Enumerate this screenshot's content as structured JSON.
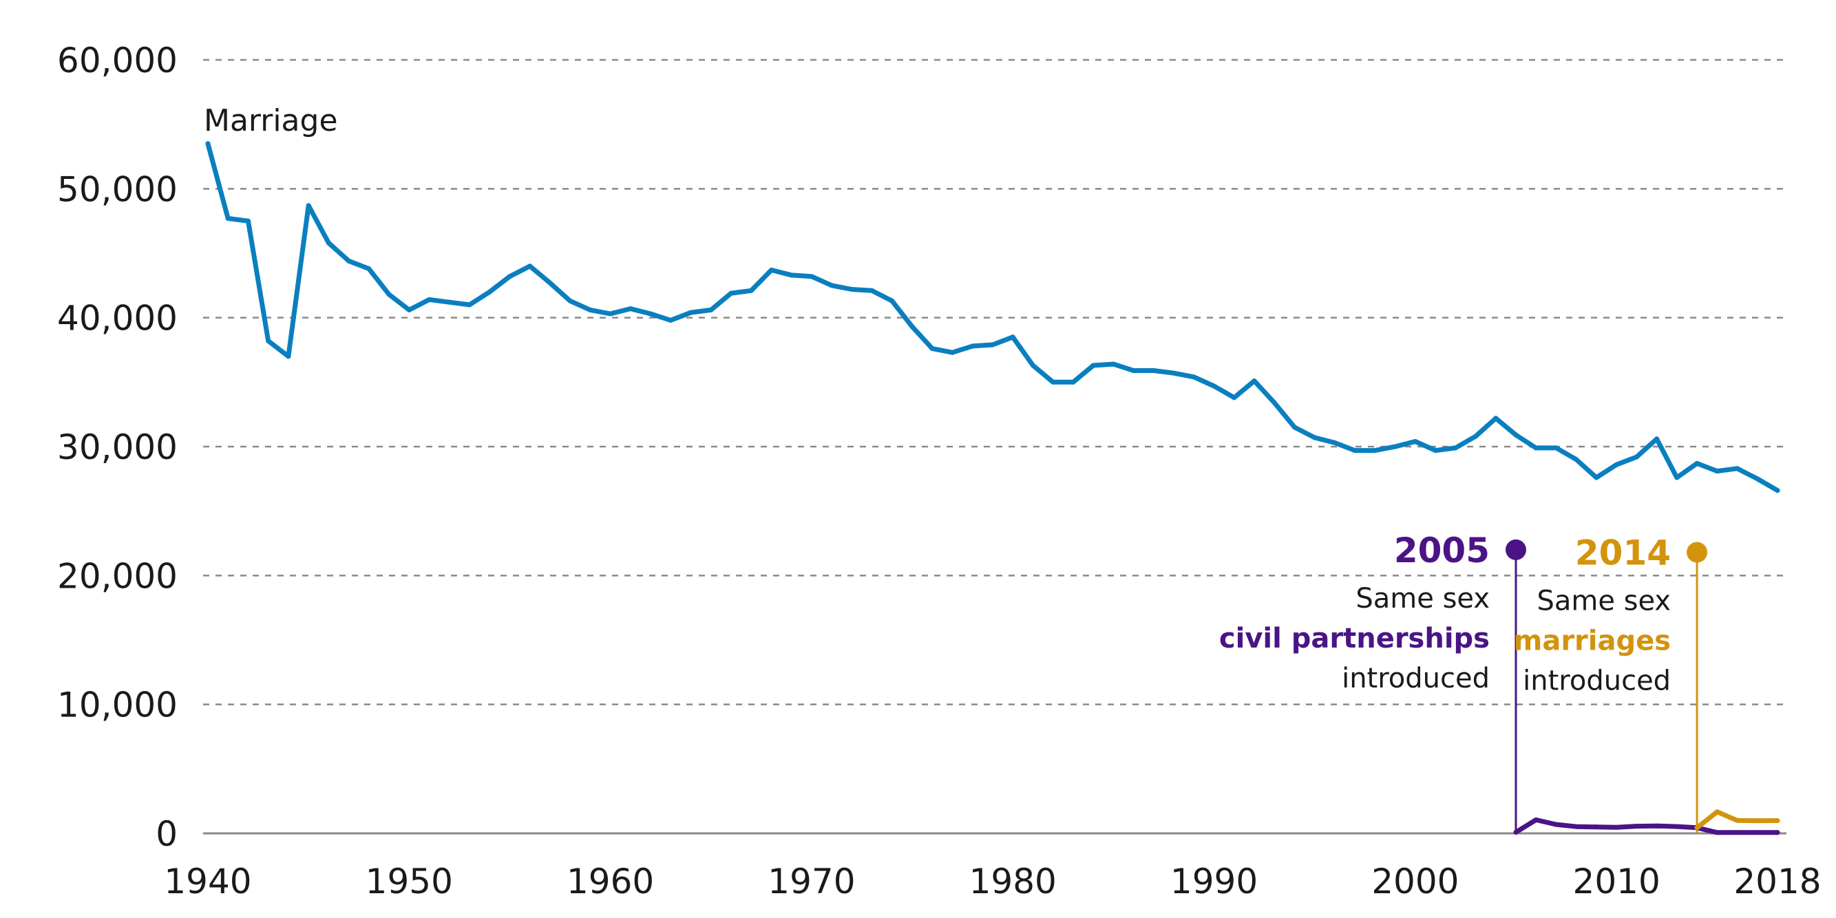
{
  "chart_data": {
    "type": "line",
    "x_ticks": [
      1940,
      1950,
      1960,
      1970,
      1980,
      1990,
      2000,
      2010,
      2018
    ],
    "y_ticks": [
      "0",
      "10,000",
      "20,000",
      "30,000",
      "40,000",
      "50,000",
      "60,000"
    ],
    "y_tick_values": [
      0,
      10000,
      20000,
      30000,
      40000,
      50000,
      60000
    ],
    "xlim": [
      1940,
      2018
    ],
    "ylim": [
      0,
      60000
    ],
    "grid": "horizontal dashed",
    "series": [
      {
        "name": "Marriage",
        "color": "#0a7fbf",
        "x": [
          1940,
          1941,
          1942,
          1943,
          1944,
          1945,
          1946,
          1947,
          1948,
          1949,
          1950,
          1951,
          1952,
          1953,
          1954,
          1955,
          1956,
          1957,
          1958,
          1959,
          1960,
          1961,
          1962,
          1963,
          1964,
          1965,
          1966,
          1967,
          1968,
          1969,
          1970,
          1971,
          1972,
          1973,
          1974,
          1975,
          1976,
          1977,
          1978,
          1979,
          1980,
          1981,
          1982,
          1983,
          1984,
          1985,
          1986,
          1987,
          1988,
          1989,
          1990,
          1991,
          1992,
          1993,
          1994,
          1995,
          1996,
          1997,
          1998,
          1999,
          2000,
          2001,
          2002,
          2003,
          2004,
          2005,
          2006,
          2007,
          2008,
          2009,
          2010,
          2011,
          2012,
          2013,
          2014,
          2015,
          2016,
          2017,
          2018
        ],
        "values": [
          53500,
          47700,
          47500,
          38200,
          37000,
          48700,
          45800,
          44400,
          43800,
          41800,
          40600,
          41400,
          41200,
          41000,
          42000,
          43200,
          44000,
          42700,
          41300,
          40600,
          40300,
          40700,
          40300,
          39800,
          40400,
          40600,
          41900,
          42100,
          43700,
          43300,
          43200,
          42500,
          42200,
          42100,
          41300,
          39300,
          37600,
          37300,
          37800,
          37900,
          38500,
          36300,
          35000,
          35000,
          36300,
          36400,
          35900,
          35900,
          35700,
          35400,
          34700,
          33800,
          35100,
          33400,
          31500,
          30700,
          30300,
          29700,
          29700,
          30000,
          30400,
          29700,
          29900,
          30800,
          32200,
          30900,
          29900,
          29900,
          29000,
          27600,
          28600,
          29200,
          30600,
          27600,
          28700,
          28100,
          28300,
          27500,
          26600
        ]
      },
      {
        "name": "",
        "color": "#4a1486",
        "x": [
          2005,
          2006,
          2007,
          2008,
          2009,
          2010,
          2011,
          2012,
          2013,
          2014,
          2015,
          2016,
          2017,
          2018
        ],
        "values": [
          84,
          1047,
          688,
          525,
          498,
          465,
          554,
          574,
          530,
          436,
          64,
          70,
          67,
          67
        ]
      },
      {
        "name": "",
        "color": "#d4930d",
        "x": [
          2014,
          2015,
          2016,
          2017,
          2018
        ],
        "values": [
          435,
          1671,
          998,
          982,
          986
        ]
      }
    ],
    "annotations": [
      {
        "year": "2005",
        "line1": "Same sex",
        "highlight": "civil partnerships",
        "line3": "introduced",
        "color": "#4a1486",
        "x": 2005,
        "y_top": 22000
      },
      {
        "year": "2014",
        "line1": "Same sex",
        "highlight": "marriages",
        "line3": "introduced",
        "color": "#d4930d",
        "x": 2014,
        "y_top": 21800
      }
    ]
  }
}
